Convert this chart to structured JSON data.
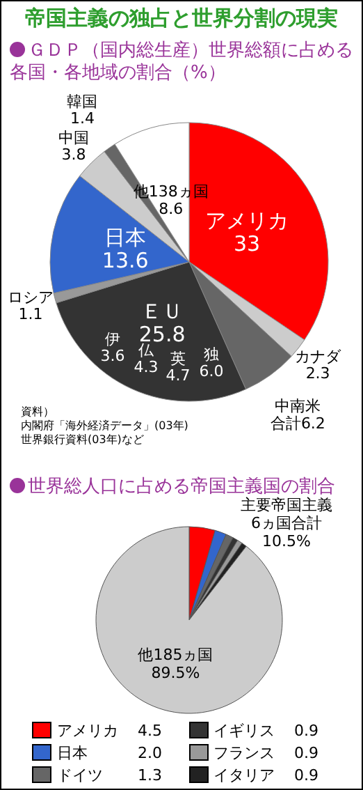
{
  "chart_data": [
    {
      "type": "pie",
      "title": "帝国主義の独占と世界分割の現実",
      "subtitle": "ＧＤＰ（国内総生産）世界総額に占める各国・各地域の割合（%）",
      "categories": [
        "アメリカ",
        "カナダ",
        "中南米",
        "ＥＵ",
        "ロシア",
        "日本",
        "中国",
        "韓国",
        "他138ヵ国"
      ],
      "values": [
        33,
        2.3,
        6.2,
        25.8,
        1.1,
        13.6,
        3.8,
        1.4,
        8.6
      ],
      "colors": [
        "#ff0000",
        "#cccccc",
        "#666666",
        "#333333",
        "#999999",
        "#3366cc",
        "#cccccc",
        "#666666",
        "#ffffff"
      ],
      "value_labels": [
        "33",
        "2.3",
        "合計6.2",
        "25.8",
        "1.1",
        "13.6",
        "3.8",
        "1.4",
        "8.6"
      ],
      "annotations": [
        "伊 3.6",
        "仏 4.3",
        "英 4.7",
        "独 6.0",
        "資料）",
        "内閣府「海外経済データ」(03年)",
        "世界銀行資料(03年)など"
      ]
    },
    {
      "type": "pie",
      "title": "世界総人口に占める帝国主義国の割合",
      "categories": [
        "アメリカ",
        "日本",
        "ドイツ",
        "イギリス",
        "フランス",
        "イタリア",
        "他185ヵ国"
      ],
      "values": [
        4.5,
        2.0,
        1.3,
        0.9,
        0.9,
        0.9,
        89.5
      ],
      "colors": [
        "#ff0000",
        "#3366cc",
        "#666666",
        "#333333",
        "#999999",
        "#222222",
        "#cccccc"
      ],
      "value_labels": [
        "4.5",
        "2.0",
        "1.3",
        "0.9",
        "0.9",
        "0.9",
        "89.5%"
      ],
      "annotations": [
        "主要帝国主義\n6ヵ国合計\n10.5%"
      ],
      "legend": "bottom"
    }
  ]
}
